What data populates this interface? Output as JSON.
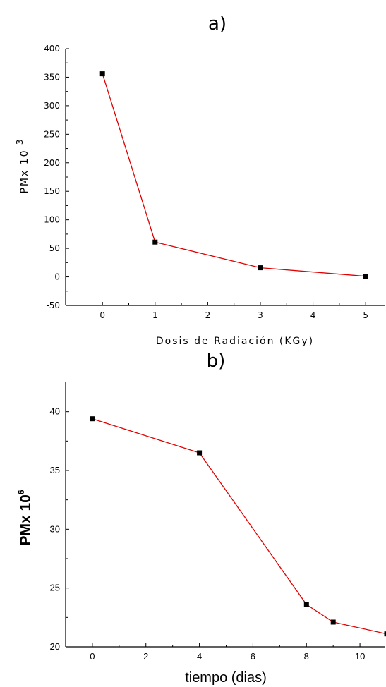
{
  "chart_data": [
    {
      "panel_label": "a)",
      "type": "line",
      "x": [
        0,
        1,
        3,
        5
      ],
      "y": [
        356,
        61,
        16,
        1
      ],
      "xlabel": "Dosis de Radiación (KGy)",
      "ylabel": "PMx 10",
      "ylabel_sup": "-3",
      "xlim": [
        -0.7,
        5.4
      ],
      "ylim": [
        -50,
        400
      ],
      "xticks": [
        0,
        1,
        2,
        3,
        4,
        5
      ],
      "yticks": [
        -50,
        0,
        50,
        100,
        150,
        200,
        250,
        300,
        350,
        400
      ],
      "series_color": "#e00000",
      "marker_color": "#000000",
      "grid": false
    },
    {
      "panel_label": "b)",
      "type": "line",
      "x": [
        0,
        4,
        8,
        9,
        11
      ],
      "y": [
        39.4,
        36.5,
        23.6,
        22.1,
        21.1
      ],
      "xlabel": "tiempo (dias)",
      "ylabel": "PMx 10",
      "ylabel_sup": "6",
      "xlim": [
        -1,
        11
      ],
      "ylim": [
        20,
        42.5
      ],
      "xticks": [
        0,
        2,
        4,
        6,
        8,
        10
      ],
      "yticks": [
        20,
        25,
        30,
        35,
        40
      ],
      "series_color": "#e00000",
      "marker_color": "#000000",
      "grid": false
    }
  ]
}
